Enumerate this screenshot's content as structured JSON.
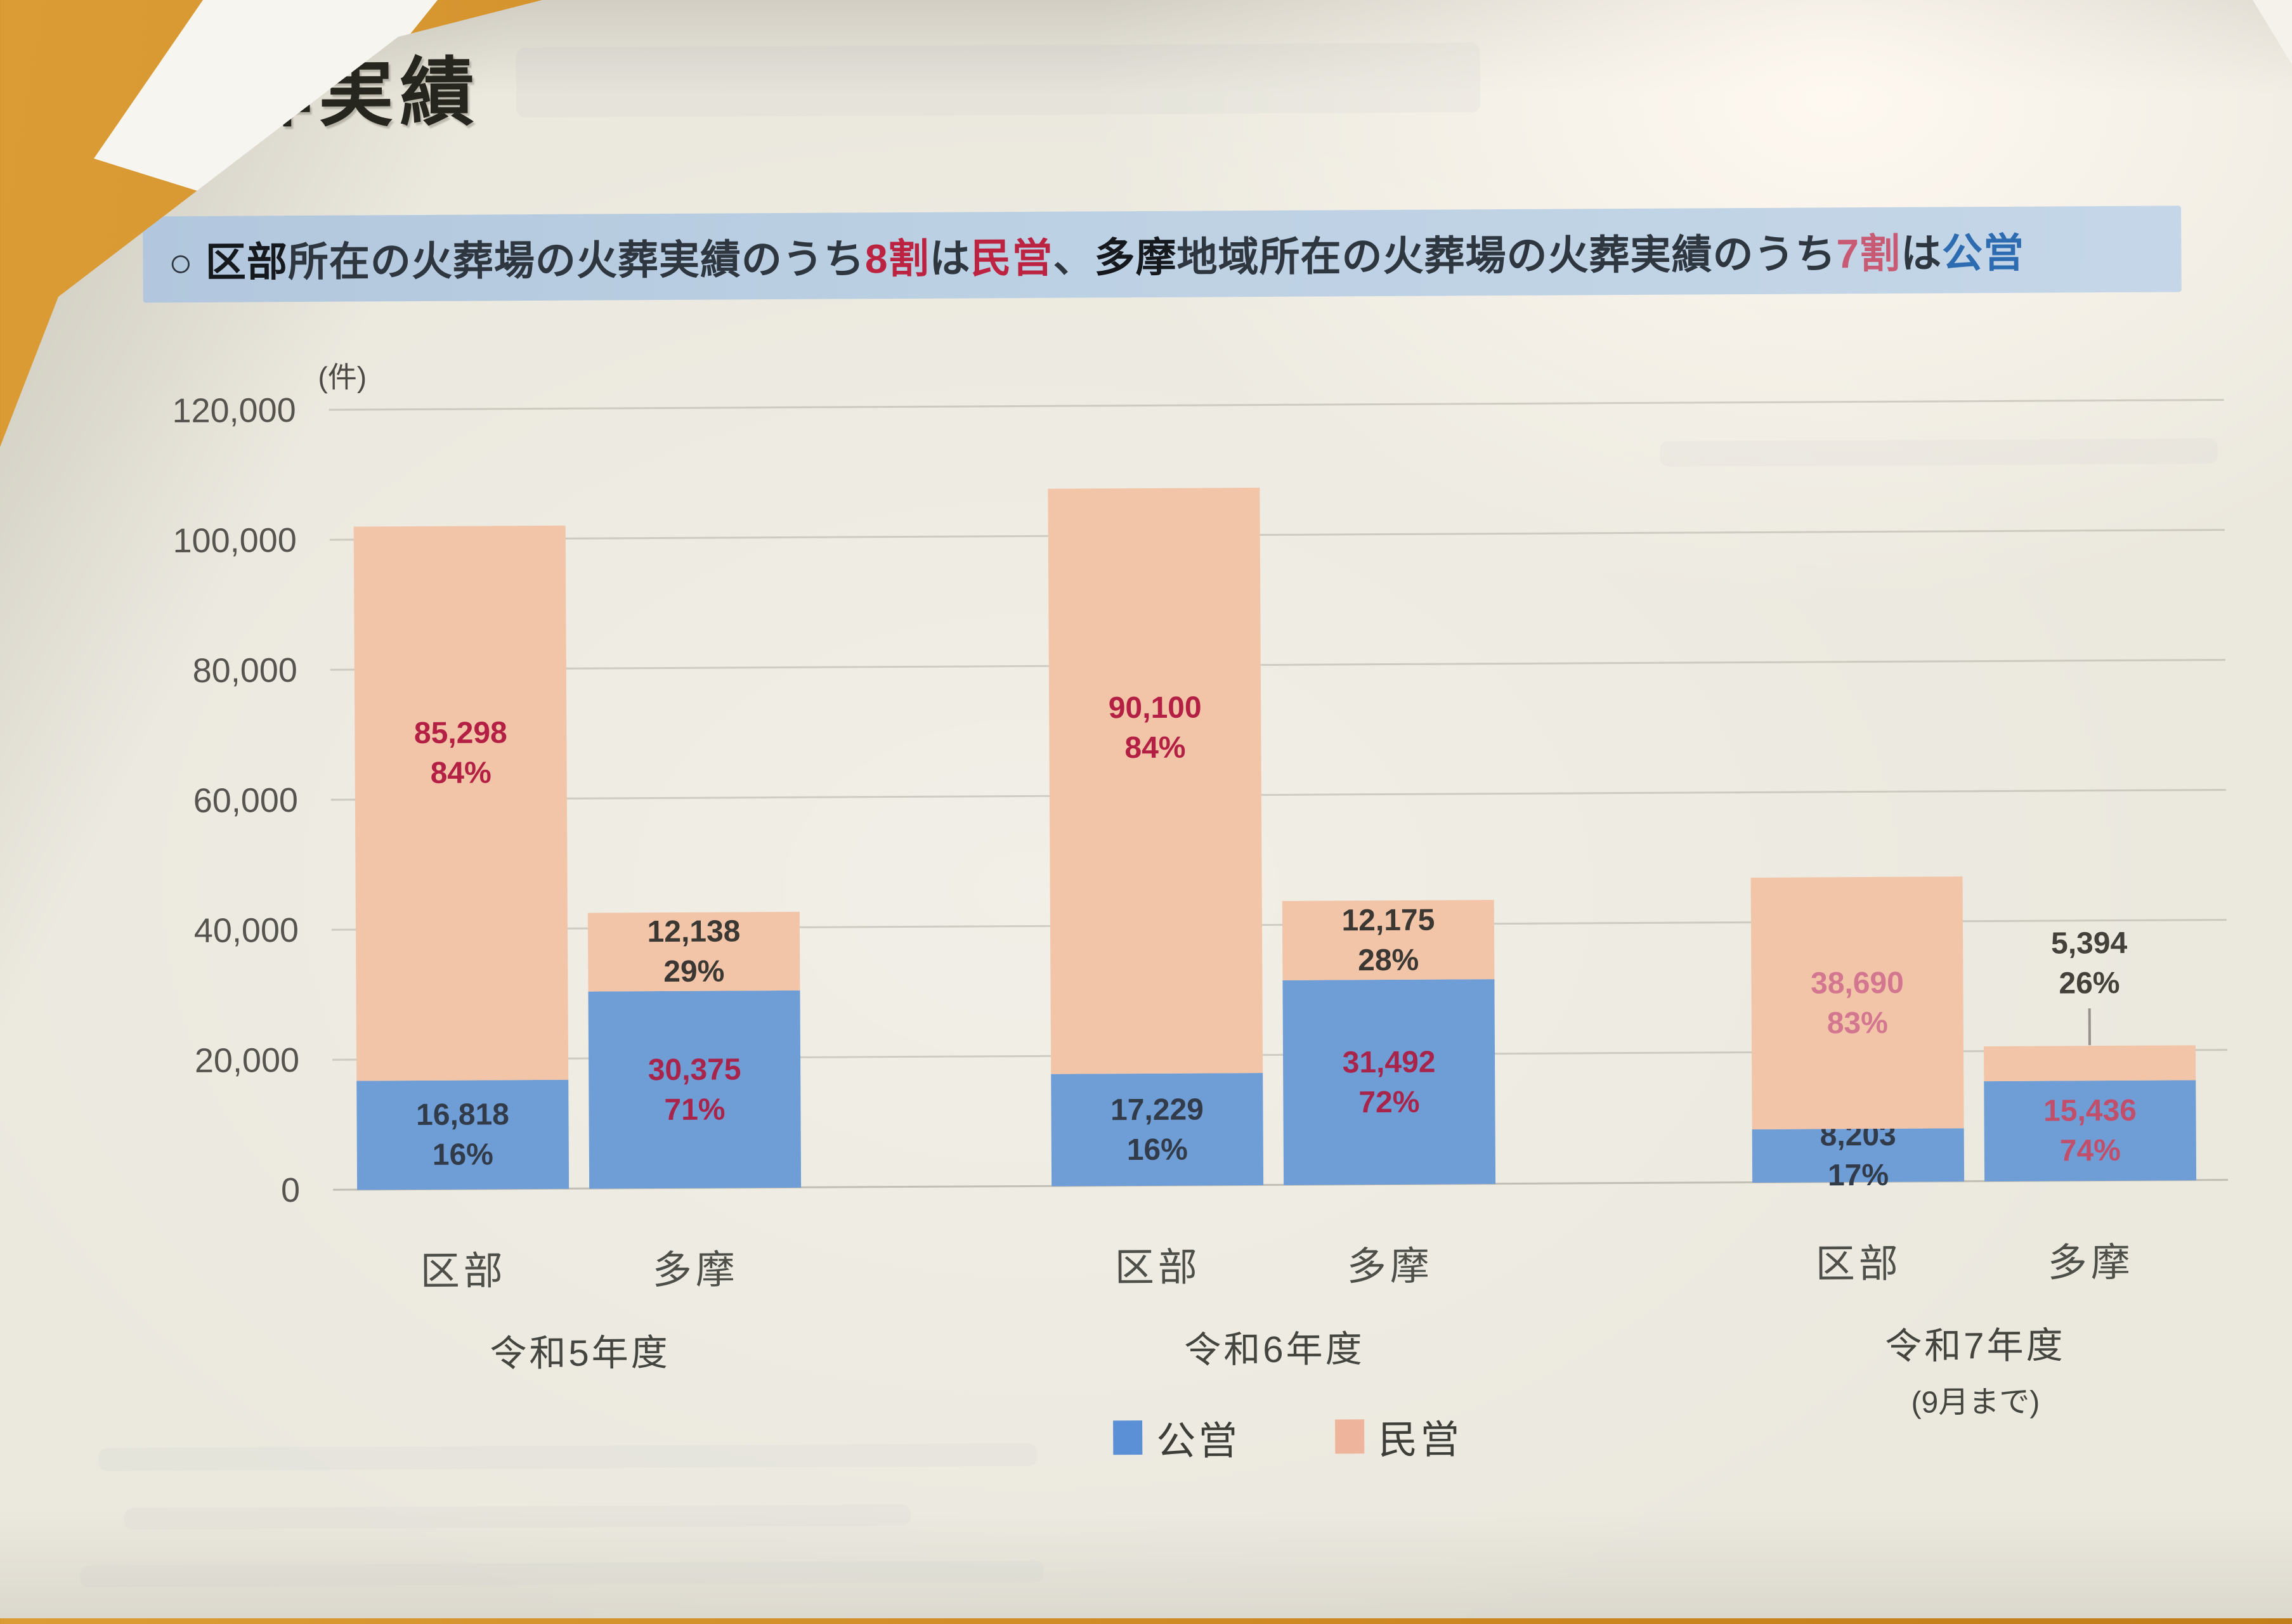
{
  "page": {
    "title": "火葬実績"
  },
  "colors": {
    "accent_red": "#bb2340",
    "accent_red_muted": "#c95a74",
    "accent_blue": "#2e6cb2",
    "band_bg": "#bdd1e4",
    "bar_public_blue": "#6f9ed6",
    "bar_private_pink": "#f2c5a9"
  },
  "headline": {
    "segments": [
      {
        "text": "○ ",
        "style": "normal"
      },
      {
        "text": "区部",
        "style": "bold"
      },
      {
        "text": "所在の火葬場の火葬実績のうち",
        "style": "normal"
      },
      {
        "text": "8割",
        "style": "red"
      },
      {
        "text": "は",
        "style": "normal"
      },
      {
        "text": "民営",
        "style": "red"
      },
      {
        "text": "、",
        "style": "normal"
      },
      {
        "text": "多摩",
        "style": "bold"
      },
      {
        "text": "地域所在の火葬場の火葬実績のうち",
        "style": "normal"
      },
      {
        "text": "7割",
        "style": "red-muted"
      },
      {
        "text": "は",
        "style": "normal"
      },
      {
        "text": "公営",
        "style": "blue"
      }
    ]
  },
  "chart_data": {
    "type": "bar",
    "stacked": true,
    "grid": true,
    "title": "火葬実績",
    "unit_label": "(件)",
    "ylabel": "件",
    "ylim": [
      0,
      120000
    ],
    "yticks": [
      {
        "value": 0,
        "label": "0"
      },
      {
        "value": 20000,
        "label": "20,000"
      },
      {
        "value": 40000,
        "label": "40,000"
      },
      {
        "value": 60000,
        "label": "60,000"
      },
      {
        "value": 80000,
        "label": "80,000"
      },
      {
        "value": 100000,
        "label": "100,000"
      },
      {
        "value": 120000,
        "label": "120,000"
      }
    ],
    "legend_position": "bottom",
    "series": [
      {
        "name": "公営",
        "color": "#6f9ed6",
        "legend_color": "#5b90d6"
      },
      {
        "name": "民営",
        "color": "#f2c5a9",
        "legend_color": "#eeb49c"
      }
    ],
    "groups": [
      {
        "label": "令和5年度",
        "sub_label": "",
        "bars": [
          {
            "category": "区部",
            "segments": [
              {
                "series": "公営",
                "value": 16818,
                "value_label": "16,818",
                "pct_label": "16%",
                "label_color": "#323b49",
                "label_pos": "center"
              },
              {
                "series": "民営",
                "value": 85298,
                "value_label": "85,298",
                "pct_label": "84%",
                "label_color": "#b32044",
                "label_pos": "upper"
              }
            ]
          },
          {
            "category": "多摩",
            "segments": [
              {
                "series": "公営",
                "value": 30375,
                "value_label": "30,375",
                "pct_label": "71%",
                "label_color": "#a8244a",
                "label_pos": "center"
              },
              {
                "series": "民営",
                "value": 12138,
                "value_label": "12,138",
                "pct_label": "29%",
                "label_color": "#3b3733",
                "label_pos": "center"
              }
            ]
          }
        ]
      },
      {
        "label": "令和6年度",
        "sub_label": "",
        "bars": [
          {
            "category": "区部",
            "segments": [
              {
                "series": "公営",
                "value": 17229,
                "value_label": "17,229",
                "pct_label": "16%",
                "label_color": "#323b49",
                "label_pos": "center"
              },
              {
                "series": "民営",
                "value": 90100,
                "value_label": "90,100",
                "pct_label": "84%",
                "label_color": "#b32044",
                "label_pos": "upper"
              }
            ]
          },
          {
            "category": "多摩",
            "segments": [
              {
                "series": "公営",
                "value": 31492,
                "value_label": "31,492",
                "pct_label": "72%",
                "label_color": "#a8244a",
                "label_pos": "center"
              },
              {
                "series": "民営",
                "value": 12175,
                "value_label": "12,175",
                "pct_label": "28%",
                "label_color": "#3b3733",
                "label_pos": "center"
              }
            ]
          }
        ]
      },
      {
        "label": "令和7年度",
        "sub_label": "(9月まで)",
        "bars": [
          {
            "category": "区部",
            "segments": [
              {
                "series": "公営",
                "value": 8203,
                "value_label": "8,203",
                "pct_label": "17%",
                "label_color": "#323b49",
                "label_pos": "center"
              },
              {
                "series": "民営",
                "value": 38690,
                "value_label": "38,690",
                "pct_label": "83%",
                "label_color": "#d3768f",
                "label_pos": "center"
              }
            ]
          },
          {
            "category": "多摩",
            "segments": [
              {
                "series": "公営",
                "value": 15436,
                "value_label": "15,436",
                "pct_label": "74%",
                "label_color": "#c14f6b",
                "label_pos": "center"
              },
              {
                "series": "民営",
                "value": 5394,
                "value_label": "5,394",
                "pct_label": "26%",
                "label_color": "#44403a",
                "label_pos": "outside-above"
              }
            ]
          }
        ]
      }
    ]
  }
}
